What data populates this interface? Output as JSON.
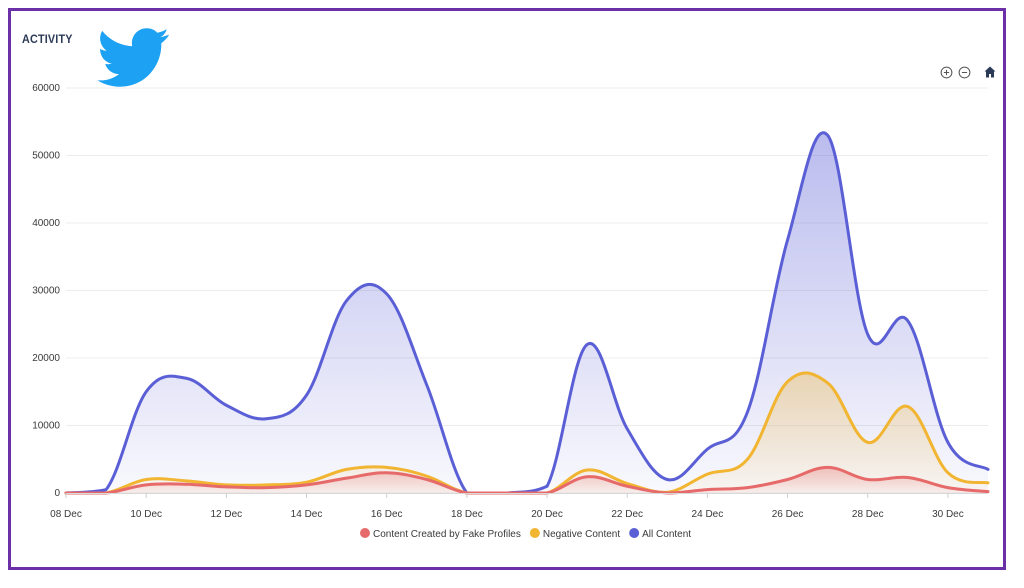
{
  "header": {
    "title": "ACTIVITY",
    "logo": "twitter-bird-icon",
    "brand_color": "#1da1f2",
    "frame_color": "#6b2fa8"
  },
  "toolbar": {
    "zoom_in_icon": "zoom-in-icon",
    "zoom_out_icon": "zoom-out-icon",
    "home_icon": "home-icon"
  },
  "chart_data": {
    "type": "area",
    "title": "ACTIVITY",
    "xlabel": "",
    "ylabel": "",
    "x_start": "08 Dec",
    "x_end": "31 Dec",
    "x": [
      "08 Dec",
      "09 Dec",
      "10 Dec",
      "11 Dec",
      "12 Dec",
      "13 Dec",
      "14 Dec",
      "15 Dec",
      "16 Dec",
      "17 Dec",
      "18 Dec",
      "19 Dec",
      "20 Dec",
      "21 Dec",
      "22 Dec",
      "23 Dec",
      "24 Dec",
      "25 Dec",
      "26 Dec",
      "27 Dec",
      "28 Dec",
      "29 Dec",
      "30 Dec",
      "31 Dec"
    ],
    "x_tick_labels": [
      "08 Dec",
      "10 Dec",
      "12 Dec",
      "14 Dec",
      "16 Dec",
      "18 Dec",
      "20 Dec",
      "22 Dec",
      "24 Dec",
      "26 Dec",
      "28 Dec",
      "30 Dec"
    ],
    "y_ticks": [
      0,
      10000,
      20000,
      30000,
      40000,
      50000,
      60000
    ],
    "ylim": [
      0,
      60000
    ],
    "grid": true,
    "legend_position": "bottom-center",
    "series": [
      {
        "name": "All Content",
        "color": "#5b5fd6",
        "values": [
          0,
          500,
          15000,
          17000,
          13000,
          11000,
          14500,
          28500,
          29500,
          16000,
          0,
          0,
          1000,
          22000,
          9500,
          2000,
          6500,
          12000,
          37500,
          53000,
          23500,
          25500,
          7500,
          3500
        ]
      },
      {
        "name": "Negative Content",
        "color": "#f2b531",
        "values": [
          0,
          0,
          2000,
          1800,
          1200,
          1200,
          1600,
          3500,
          3800,
          2500,
          0,
          0,
          0,
          3400,
          1400,
          100,
          2800,
          5000,
          16500,
          16300,
          7500,
          12800,
          3000,
          1500
        ]
      },
      {
        "name": "Content Created by Fake Profiles",
        "color": "#e76a6a",
        "values": [
          0,
          0,
          1200,
          1300,
          900,
          800,
          1200,
          2200,
          3000,
          2000,
          0,
          0,
          0,
          2400,
          1000,
          0,
          500,
          800,
          2000,
          3800,
          2000,
          2300,
          800,
          200
        ]
      }
    ],
    "legend": [
      "Content Created by Fake Profiles",
      "Negative Content",
      "All Content"
    ]
  }
}
